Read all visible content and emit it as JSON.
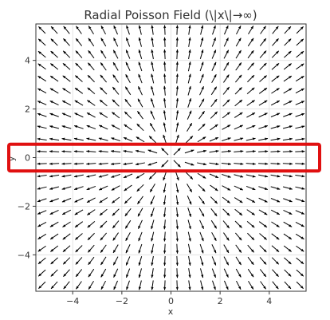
{
  "chart_data": {
    "type": "quiver",
    "title": "Radial Poisson Field (\\|x\\|→∞)",
    "xlabel": "x",
    "ylabel": "y",
    "xlim": [
      -5.5,
      5.5
    ],
    "ylim": [
      -5.5,
      5.5
    ],
    "xticks": [
      -4,
      -2,
      0,
      2,
      4
    ],
    "yticks": [
      -4,
      -2,
      0,
      2,
      4
    ],
    "xtick_labels": [
      "−4",
      "−2",
      "0",
      "2",
      "4"
    ],
    "ytick_labels": [
      "−4",
      "−2",
      "0",
      "2",
      "4"
    ],
    "grid": true,
    "field": "radial outward, unit direction x/|x|",
    "sample_range": [
      -5.25,
      5.25
    ],
    "sample_count": 22,
    "arrow_color": "#000000",
    "grid_color": "#dddddd",
    "highlight": {
      "color": "#e01010",
      "y_range": [
        -0.55,
        0.55
      ]
    }
  }
}
